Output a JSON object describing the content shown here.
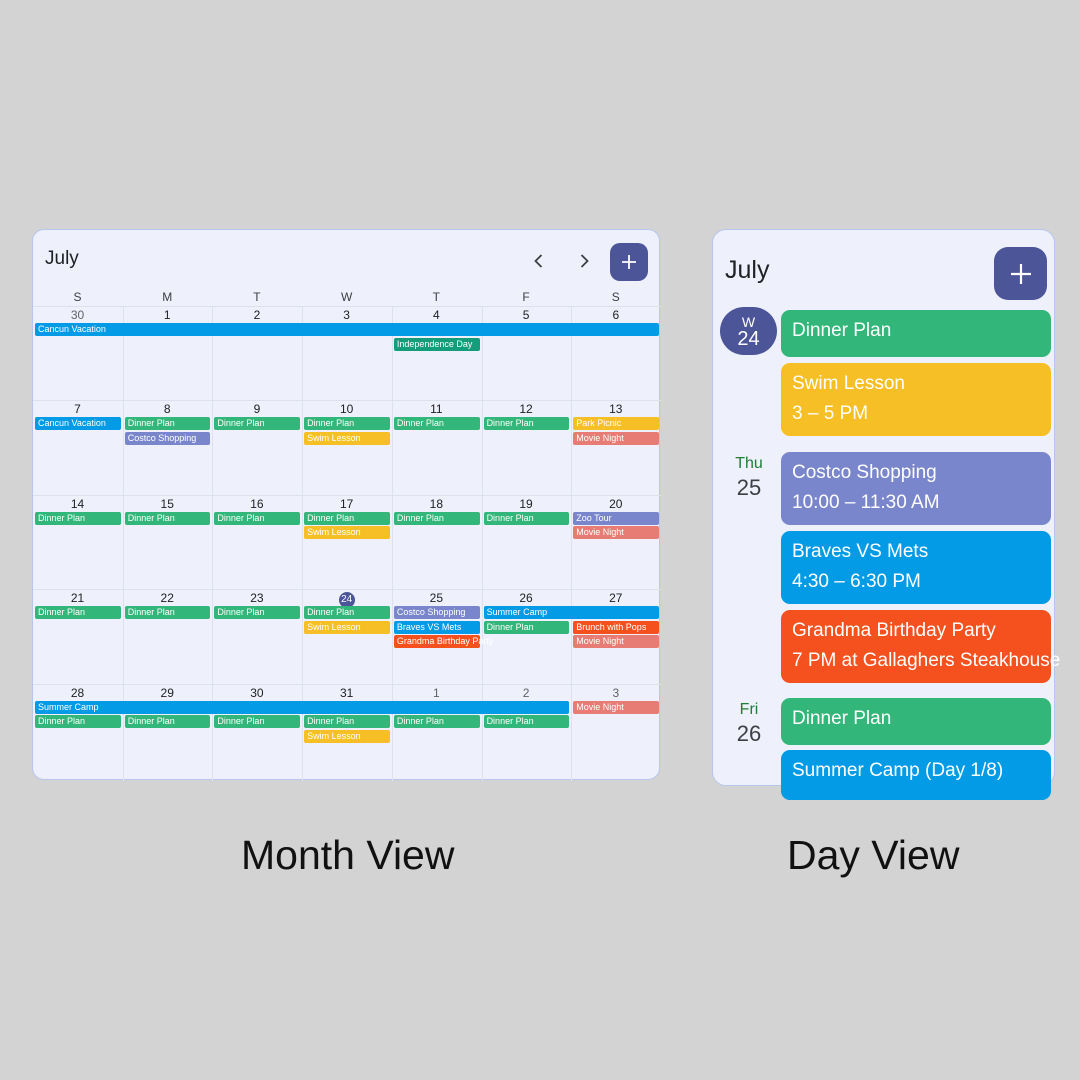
{
  "month_view": {
    "title": "July",
    "weekdays": [
      "S",
      "M",
      "T",
      "W",
      "T",
      "F",
      "S"
    ],
    "weeks": [
      {
        "dates": [
          "30",
          "1",
          "2",
          "3",
          "4",
          "5",
          "6"
        ],
        "muted": [
          true,
          false,
          false,
          false,
          false,
          false,
          false
        ],
        "today": -1
      },
      {
        "dates": [
          "7",
          "8",
          "9",
          "10",
          "11",
          "12",
          "13"
        ],
        "muted": [
          false,
          false,
          false,
          false,
          false,
          false,
          false
        ],
        "today": -1
      },
      {
        "dates": [
          "14",
          "15",
          "16",
          "17",
          "18",
          "19",
          "20"
        ],
        "muted": [
          false,
          false,
          false,
          false,
          false,
          false,
          false
        ],
        "today": -1
      },
      {
        "dates": [
          "21",
          "22",
          "23",
          "24",
          "25",
          "26",
          "27"
        ],
        "muted": [
          false,
          false,
          false,
          false,
          false,
          false,
          false
        ],
        "today": 3
      },
      {
        "dates": [
          "28",
          "29",
          "30",
          "31",
          "1",
          "2",
          "3"
        ],
        "muted": [
          false,
          false,
          false,
          false,
          true,
          true,
          true
        ],
        "today": -1
      }
    ],
    "events": [
      {
        "week": 0,
        "col": 0,
        "span": 7,
        "row": 0,
        "label": "Cancun Vacation",
        "color": "#039be5"
      },
      {
        "week": 0,
        "col": 4,
        "span": 1,
        "row": 1,
        "label": "Independence Day",
        "color": "#159c7a"
      },
      {
        "week": 1,
        "col": 0,
        "span": 1,
        "row": 0,
        "label": "Cancun Vacation",
        "color": "#039be5"
      },
      {
        "week": 1,
        "col": 1,
        "span": 1,
        "row": 0,
        "label": "Dinner Plan",
        "color": "#33b679"
      },
      {
        "week": 1,
        "col": 1,
        "span": 1,
        "row": 1,
        "label": "Costco Shopping",
        "color": "#7986cb"
      },
      {
        "week": 1,
        "col": 2,
        "span": 1,
        "row": 0,
        "label": "Dinner Plan",
        "color": "#33b679"
      },
      {
        "week": 1,
        "col": 3,
        "span": 1,
        "row": 0,
        "label": "Dinner Plan",
        "color": "#33b679"
      },
      {
        "week": 1,
        "col": 3,
        "span": 1,
        "row": 1,
        "label": "Swim Lesson",
        "color": "#f6bf26"
      },
      {
        "week": 1,
        "col": 4,
        "span": 1,
        "row": 0,
        "label": "Dinner Plan",
        "color": "#33b679"
      },
      {
        "week": 1,
        "col": 5,
        "span": 1,
        "row": 0,
        "label": "Dinner Plan",
        "color": "#33b679"
      },
      {
        "week": 1,
        "col": 6,
        "span": 1,
        "row": 0,
        "label": "Park Picnic",
        "color": "#f6bf26"
      },
      {
        "week": 1,
        "col": 6,
        "span": 1,
        "row": 1,
        "label": "Movie Night",
        "color": "#e67c73"
      },
      {
        "week": 2,
        "col": 0,
        "span": 1,
        "row": 0,
        "label": "Dinner Plan",
        "color": "#33b679"
      },
      {
        "week": 2,
        "col": 1,
        "span": 1,
        "row": 0,
        "label": "Dinner Plan",
        "color": "#33b679"
      },
      {
        "week": 2,
        "col": 2,
        "span": 1,
        "row": 0,
        "label": "Dinner Plan",
        "color": "#33b679"
      },
      {
        "week": 2,
        "col": 3,
        "span": 1,
        "row": 0,
        "label": "Dinner Plan",
        "color": "#33b679"
      },
      {
        "week": 2,
        "col": 3,
        "span": 1,
        "row": 1,
        "label": "Swim Lesson",
        "color": "#f6bf26"
      },
      {
        "week": 2,
        "col": 4,
        "span": 1,
        "row": 0,
        "label": "Dinner Plan",
        "color": "#33b679"
      },
      {
        "week": 2,
        "col": 5,
        "span": 1,
        "row": 0,
        "label": "Dinner Plan",
        "color": "#33b679"
      },
      {
        "week": 2,
        "col": 6,
        "span": 1,
        "row": 0,
        "label": "Zoo Tour",
        "color": "#7986cb"
      },
      {
        "week": 2,
        "col": 6,
        "span": 1,
        "row": 1,
        "label": "Movie Night",
        "color": "#e67c73"
      },
      {
        "week": 3,
        "col": 0,
        "span": 1,
        "row": 0,
        "label": "Dinner Plan",
        "color": "#33b679"
      },
      {
        "week": 3,
        "col": 1,
        "span": 1,
        "row": 0,
        "label": "Dinner Plan",
        "color": "#33b679"
      },
      {
        "week": 3,
        "col": 2,
        "span": 1,
        "row": 0,
        "label": "Dinner Plan",
        "color": "#33b679"
      },
      {
        "week": 3,
        "col": 3,
        "span": 1,
        "row": 0,
        "label": "Dinner Plan",
        "color": "#33b679"
      },
      {
        "week": 3,
        "col": 3,
        "span": 1,
        "row": 1,
        "label": "Swim Lesson",
        "color": "#f6bf26"
      },
      {
        "week": 3,
        "col": 4,
        "span": 1,
        "row": 0,
        "label": "Costco Shopping",
        "color": "#7986cb"
      },
      {
        "week": 3,
        "col": 4,
        "span": 1,
        "row": 1,
        "label": "Braves VS Mets",
        "color": "#039be5"
      },
      {
        "week": 3,
        "col": 4,
        "span": 1,
        "row": 2,
        "label": "Grandma Birthday Party",
        "color": "#f4511e"
      },
      {
        "week": 3,
        "col": 5,
        "span": 2,
        "row": 0,
        "label": "Summer Camp",
        "color": "#039be5"
      },
      {
        "week": 3,
        "col": 5,
        "span": 1,
        "row": 1,
        "label": "Dinner Plan",
        "color": "#33b679"
      },
      {
        "week": 3,
        "col": 6,
        "span": 1,
        "row": 1,
        "label": "Brunch with Pops",
        "color": "#f4511e"
      },
      {
        "week": 3,
        "col": 6,
        "span": 1,
        "row": 2,
        "label": "Movie Night",
        "color": "#e67c73"
      },
      {
        "week": 4,
        "col": 0,
        "span": 6,
        "row": 0,
        "label": "Summer Camp",
        "color": "#039be5"
      },
      {
        "week": 4,
        "col": 6,
        "span": 1,
        "row": 0,
        "label": "Movie Night",
        "color": "#e67c73"
      },
      {
        "week": 4,
        "col": 0,
        "span": 1,
        "row": 1,
        "label": "Dinner Plan",
        "color": "#33b679"
      },
      {
        "week": 4,
        "col": 1,
        "span": 1,
        "row": 1,
        "label": "Dinner Plan",
        "color": "#33b679"
      },
      {
        "week": 4,
        "col": 2,
        "span": 1,
        "row": 1,
        "label": "Dinner Plan",
        "color": "#33b679"
      },
      {
        "week": 4,
        "col": 3,
        "span": 1,
        "row": 1,
        "label": "Dinner Plan",
        "color": "#33b679"
      },
      {
        "week": 4,
        "col": 3,
        "span": 1,
        "row": 2,
        "label": "Swim Lesson",
        "color": "#f6bf26"
      },
      {
        "week": 4,
        "col": 4,
        "span": 1,
        "row": 1,
        "label": "Dinner Plan",
        "color": "#33b679"
      },
      {
        "week": 4,
        "col": 5,
        "span": 1,
        "row": 1,
        "label": "Dinner Plan",
        "color": "#33b679"
      }
    ],
    "icons": {
      "prev": "chevron-left-icon",
      "next": "chevron-right-icon",
      "add": "plus-icon"
    }
  },
  "day_view": {
    "title": "July",
    "today": {
      "weekday": "W",
      "date": "24"
    },
    "days": [
      {
        "weekday": "Thu",
        "date": "25"
      },
      {
        "weekday": "Fri",
        "date": "26"
      }
    ],
    "events": [
      {
        "title": "Dinner Plan",
        "subtitle": "",
        "color": "#33b679"
      },
      {
        "title": "Swim Lesson",
        "subtitle": "3 – 5 PM",
        "color": "#f6bf26"
      },
      {
        "title": "Costco Shopping",
        "subtitle": "10:00 – 11:30 AM",
        "color": "#7986cb"
      },
      {
        "title": "Braves VS Mets",
        "subtitle": "4:30 – 6:30 PM",
        "color": "#039be5"
      },
      {
        "title": "Grandma Birthday Party",
        "subtitle": "7 PM at Gallaghers Steakhouse",
        "color": "#f4511e"
      },
      {
        "title": "Dinner Plan",
        "subtitle": "",
        "color": "#33b679"
      },
      {
        "title": "Summer Camp (Day 1/8)",
        "subtitle": "",
        "color": "#039be5"
      }
    ],
    "icons": {
      "add": "plus-icon"
    }
  },
  "captions": {
    "month": "Month View",
    "day": "Day View"
  }
}
